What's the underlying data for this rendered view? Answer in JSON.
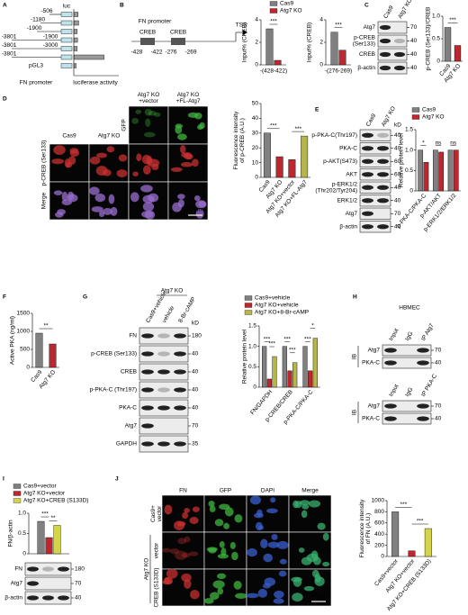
{
  "panels": {
    "A": {
      "letter": "A",
      "top_label": "luc",
      "promoter_label": "FN promoter",
      "xlabel": "luciferase activity",
      "xlim": [
        0,
        15
      ],
      "constructs": [
        {
          "label": [
            "-506"
          ],
          "value": 1.5
        },
        {
          "label": [
            "-1180"
          ],
          "value": 1.7
        },
        {
          "label": [
            "-1900"
          ],
          "value": 1.2
        },
        {
          "label": [
            "-3801",
            "-1900"
          ],
          "value": 1.3
        },
        {
          "label": [
            "-3801",
            "-3000"
          ],
          "value": 1.2
        },
        {
          "label": [
            "-3801"
          ],
          "value": 10.5
        },
        {
          "label": [
            "pGL3"
          ],
          "value": 0.8
        }
      ]
    },
    "B": {
      "letter": "B",
      "diagram": {
        "title": "FN promoter",
        "tss": "TSS",
        "sites": [
          "CREB",
          "CREB"
        ],
        "positions": [
          "-428",
          "-422",
          "-276",
          "-269"
        ]
      },
      "charts": [
        {
          "type": "bar",
          "ylabel": "Input% (CREB)",
          "ylim": [
            0,
            4
          ],
          "yticks": [
            0,
            2,
            4
          ],
          "categories": [
            "-(428-422)"
          ],
          "series": [
            {
              "name": "Cas9",
              "color": "#808080",
              "values": [
                3.2
              ]
            },
            {
              "name": "Atg7 KO",
              "color": "#c0262d",
              "values": [
                0.4
              ]
            }
          ],
          "sig": [
            "***"
          ]
        },
        {
          "type": "bar",
          "ylabel": "Input% (CREB)",
          "ylim": [
            0,
            4
          ],
          "yticks": [
            0,
            2,
            4
          ],
          "categories": [
            "-(276-269)"
          ],
          "series": [
            {
              "color": "#808080",
              "values": [
                2.9
              ]
            },
            {
              "color": "#c0262d",
              "values": [
                1.3
              ]
            }
          ],
          "sig": [
            "***"
          ]
        }
      ]
    },
    "C": {
      "letter": "C",
      "blot": {
        "lanes": [
          "Cas9",
          "Atg7 KO"
        ],
        "rows": [
          {
            "label": "Atg7",
            "kd": 70
          },
          {
            "label": [
              "p-CREB",
              "(Ser133)"
            ],
            "kd": 40
          },
          {
            "label": "CREB",
            "kd": 40
          },
          {
            "label": "β-actin",
            "kd": 40
          }
        ]
      },
      "chart": {
        "type": "bar",
        "ylabel": "p-CREB (Ser133)/CREB",
        "ylim": [
          0,
          1
        ],
        "yticks": [
          0,
          0.5,
          {
            "value": 1,
            "label": "1.0"
          }
        ],
        "categories": [
          "Cas9",
          "Atg7 KO"
        ],
        "series": [
          {
            "colors": [
              "#808080",
              "#c0262d"
            ],
            "values": [
              0.75,
              0.35
            ]
          }
        ],
        "sig": [
          "***"
        ]
      }
    },
    "D": {
      "letter": "D",
      "columns": [
        [
          "Cas9"
        ],
        [
          "Atg7 KO"
        ],
        [
          "Atg7 KO",
          "+vector"
        ],
        [
          "Atg7 KO",
          "+FL-Atg7"
        ]
      ],
      "rows": [
        "GFP",
        "p-CREB (Ser133)",
        "Merge"
      ],
      "scale": "20 μm",
      "chart": {
        "type": "bar",
        "ylabel": [
          "Fluorescence intensity",
          "of p-CREB (A.U.)"
        ],
        "ylim": [
          0,
          50
        ],
        "yticks": [
          0,
          10,
          20,
          30,
          40,
          50
        ],
        "categories": [
          "Cas9",
          "Atg7 KO",
          "Atg7 KO+vector",
          "Atg7 KO+FL-Atg7"
        ],
        "series": [
          {
            "colors": [
              "#808080",
              "#c0262d",
              "#c0262d",
              "#b5b548"
            ],
            "values": [
              30,
              14,
              12,
              28
            ]
          }
        ],
        "sig": [
          "***",
          "***"
        ]
      }
    },
    "E": {
      "letter": "E",
      "blot": {
        "lanes": [
          "Cas9",
          "Atg7 KO"
        ],
        "kd_label": "kD",
        "rows": [
          {
            "label": "p-PKA-C(Thr197)",
            "kd": 40
          },
          {
            "label": "PKA-C",
            "kd": 40
          },
          {
            "label": "p-AKT(S473)",
            "kd": 60
          },
          {
            "label": "AKT",
            "kd": 60
          },
          {
            "label": [
              "p-ERK1/2",
              "(Thr202/Tyr204)"
            ],
            "kd": 40
          },
          {
            "label": "ERK1/2",
            "kd": 40
          },
          {
            "label": "Atg7",
            "kd": 70
          },
          {
            "label": "β-actin",
            "kd": 40
          }
        ]
      },
      "chart": {
        "type": "bar",
        "ylabel": "Relative protein level",
        "ylim": [
          0,
          1.5
        ],
        "yticks": [
          0,
          0.5,
          {
            "value": 1,
            "label": "1.0"
          },
          1.5
        ],
        "categories": [
          "p-PKA-C/PKA-C",
          "p-AKT/AKT",
          "p-ERK1/2/ERK1/2"
        ],
        "series": [
          {
            "name": "Cas9",
            "color": "#808080",
            "values": [
              1,
              1,
              1
            ]
          },
          {
            "name": "Atg7 KO",
            "color": "#c0262d",
            "values": [
              0.7,
              0.95,
              1
            ]
          }
        ],
        "sig": [
          "*",
          "ns",
          "ns"
        ]
      }
    },
    "F": {
      "letter": "F",
      "chart": {
        "type": "bar",
        "ylabel": "Active PKA (ng/ml)",
        "ylim": [
          0,
          1500
        ],
        "yticks": [
          0,
          500,
          1000,
          1500
        ],
        "categories": [
          "Cas9",
          "Atg7 KO"
        ],
        "series": [
          {
            "colors": [
              "#808080",
              "#c0262d"
            ],
            "values": [
              950,
              650
            ]
          }
        ],
        "sig": [
          "**"
        ]
      }
    },
    "G": {
      "letter": "G",
      "blot": {
        "header": "Atg7 KO",
        "kd_label": "kD",
        "lanes": [
          "Cas9+vehicle",
          "vehicle",
          "8-Br-cAMP"
        ],
        "rows": [
          {
            "label": "FN",
            "kd": 180
          },
          {
            "label": "p-CREB (Ser133)",
            "kd": 40
          },
          {
            "label": "CREB",
            "kd": 40
          },
          {
            "label": "p-PKA-C (Thr197)",
            "kd": 40
          },
          {
            "label": "PKA-C",
            "kd": 40
          },
          {
            "label": "Atg7",
            "kd": 70
          },
          {
            "label": "GAPDH",
            "kd": 35
          }
        ]
      },
      "chart": {
        "type": "bar",
        "ylabel": "Relative protein level",
        "ylim": [
          0,
          1.5
        ],
        "yticks": [
          0,
          0.5,
          {
            "value": 1,
            "label": "1.0"
          },
          1.5
        ],
        "categories": [
          "FN/GAPDH",
          "p-CREB/CREB",
          "p-PKA-C/PKA-C"
        ],
        "series": [
          {
            "name": "Cas9+vehicle",
            "color": "#808080",
            "values": [
              1,
              1,
              1
            ]
          },
          {
            "name": "Atg7 KO+vehicle",
            "color": "#c0262d",
            "values": [
              0.2,
              0.4,
              0.4
            ]
          },
          {
            "name": "Atg7 KO+8-Br-cAMP",
            "color": "#b5b548",
            "values": [
              0.75,
              0.6,
              1.2
            ]
          }
        ],
        "sig": [
          "***",
          "***",
          "***",
          "***",
          "***",
          "*"
        ]
      }
    },
    "H": {
      "letter": "H",
      "title": "HBMEC",
      "blots": [
        {
          "ib": "IB",
          "lanes": [
            "Input",
            "IgG",
            "IP Atg7"
          ],
          "rows": [
            {
              "label": "Atg7",
              "kd": 70
            },
            {
              "label": "PKA-C",
              "kd": 40
            }
          ]
        },
        {
          "ib": "IB",
          "lanes": [
            "Input",
            "IgG",
            "IP PKA-C"
          ],
          "rows": [
            {
              "label": "Atg7",
              "kd": 70
            },
            {
              "label": "PKA-C",
              "kd": 40
            }
          ]
        }
      ]
    },
    "I": {
      "letter": "I",
      "chart": {
        "type": "bar",
        "ylabel": "FN/β-actin",
        "ylim": [
          0,
          1
        ],
        "yticks": [
          0,
          0.5,
          {
            "value": 1,
            "label": "1.0"
          }
        ],
        "categories": [
          null
        ],
        "series": [
          {
            "name": "Cas9+vector",
            "color": "#808080",
            "values": [
              0.8
            ]
          },
          {
            "name": "Atg7 KO+vector",
            "color": "#c0262d",
            "values": [
              0.4
            ]
          },
          {
            "name": "Atg7 KO+CREB (S133D)",
            "color": "#d4d44a",
            "values": [
              0.7
            ]
          }
        ],
        "sig": [
          "***",
          "**"
        ]
      },
      "blot": {
        "rows": [
          {
            "label": "FN",
            "kd": 180
          },
          {
            "label": "Atg7",
            "kd": 70
          },
          {
            "label": "β-actin",
            "kd": 40
          }
        ]
      }
    },
    "J": {
      "letter": "J",
      "columns": [
        "FN",
        "GFP",
        "DAPI",
        "Merge"
      ],
      "rows": [
        [
          "Cas9+",
          "vector"
        ],
        [
          "vector"
        ],
        [
          "CREB (S133D)"
        ]
      ],
      "group_label": "Atg7 KO",
      "scale": "20 μm",
      "chart": {
        "type": "bar",
        "ylabel": [
          "Fluorescence intensity",
          "of FN (A.U.)"
        ],
        "ylim": [
          0,
          1000
        ],
        "yticks": [
          0,
          200,
          400,
          600,
          800,
          1000
        ],
        "categories": [
          "Cas9+vector",
          "Atg7 KO+vector",
          "Atg7 KO+CREB (S133D)"
        ],
        "series": [
          {
            "colors": [
              "#808080",
              "#c0262d",
              "#d4d44a"
            ],
            "values": [
              800,
              100,
              500
            ]
          }
        ],
        "sig": [
          "***",
          "***"
        ]
      }
    }
  }
}
